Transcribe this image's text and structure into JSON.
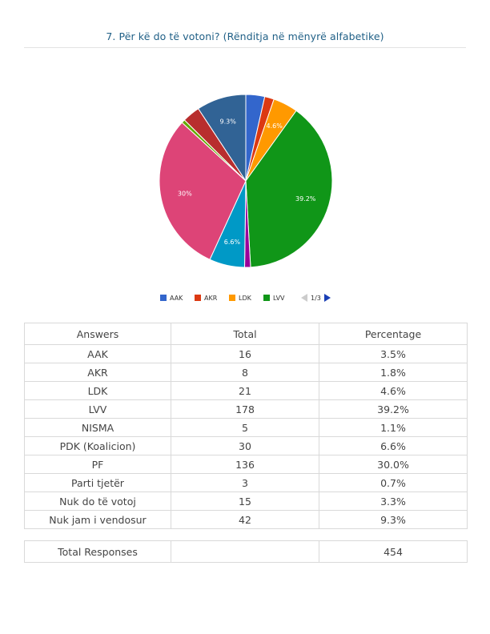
{
  "question": "7. Për kë do të votoni? (Rënditja në mënyrë alfabetike)",
  "chart_data": {
    "type": "pie",
    "categories": [
      "AAK",
      "AKR",
      "LDK",
      "LVV",
      "NISMA",
      "PDK (Koalicion)",
      "PF",
      "Parti tjetër",
      "Nuk do të votoj",
      "Nuk jam i vendosur"
    ],
    "values": [
      16,
      8,
      21,
      178,
      5,
      30,
      136,
      3,
      15,
      42
    ],
    "percentages": [
      3.5,
      1.8,
      4.6,
      39.2,
      1.1,
      6.6,
      30.0,
      0.7,
      3.3,
      9.3
    ],
    "colors": [
      "#3366cc",
      "#dc3912",
      "#ff9900",
      "#109618",
      "#990099",
      "#0099c6",
      "#dd4477",
      "#66aa00",
      "#b82e2e",
      "#316395"
    ],
    "slice_labels": [
      "",
      "",
      "4.6%",
      "39.2%",
      "",
      "6.6%",
      "30%",
      "",
      "",
      "9.3%"
    ],
    "legend": {
      "position": "bottom",
      "visible_entries": [
        "AAK",
        "AKR",
        "LDK",
        "LVV"
      ],
      "page": "1/3"
    }
  },
  "table": {
    "headers": [
      "Answers",
      "Total",
      "Percentage"
    ],
    "rows": [
      [
        "AAK",
        "16",
        "3.5%"
      ],
      [
        "AKR",
        "8",
        "1.8%"
      ],
      [
        "LDK",
        "21",
        "4.6%"
      ],
      [
        "LVV",
        "178",
        "39.2%"
      ],
      [
        "NISMA",
        "5",
        "1.1%"
      ],
      [
        "PDK (Koalicion)",
        "30",
        "6.6%"
      ],
      [
        "PF",
        "136",
        "30.0%"
      ],
      [
        "Parti tjetër",
        "3",
        "0.7%"
      ],
      [
        "Nuk do të votoj",
        "15",
        "3.3%"
      ],
      [
        "Nuk jam i vendosur",
        "42",
        "9.3%"
      ]
    ]
  },
  "totals": {
    "label": "Total Responses",
    "empty": "",
    "value": "454"
  }
}
